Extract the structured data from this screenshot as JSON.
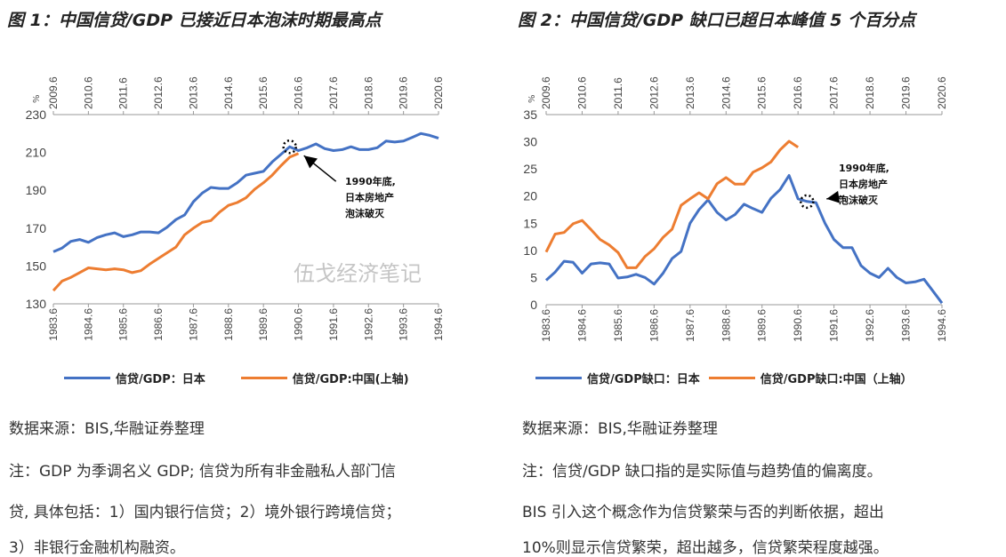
{
  "charts_titles": [
    "图 1：中国信贷/GDP 已接近日本泡沫时期最高点",
    "图 2：中国信贷/GDP 缺口已超日本峰值 5 个百分点"
  ],
  "chart_data": [
    {
      "type": "line",
      "title": "图 1：中国信贷/GDP 已接近日本泡沫时期最高点",
      "unit": "%",
      "ylim": [
        130,
        230
      ],
      "yticks": [
        "130",
        "150",
        "170",
        "190",
        "210",
        "230"
      ],
      "x_bottom_ticks": [
        "1983.6",
        "1984.6",
        "1985.6",
        "1986.6",
        "1987.6",
        "1988.6",
        "1989.6",
        "1990.6",
        "1991.6",
        "1992.6",
        "1993.6",
        "1994.6"
      ],
      "x_top_ticks": [
        "2009.6",
        "2010.6",
        "2011.6",
        "2012.6",
        "2013.6",
        "2014.6",
        "2015.6",
        "2016.6",
        "2017.6",
        "2018.6",
        "2019.6",
        "2020.6"
      ],
      "frequency": "quarterly",
      "series": [
        {
          "name": "信贷/GDP：日本",
          "color": "#4472C4",
          "axis": "bottom",
          "values": [
            157.5,
            159.5,
            163,
            164,
            162.5,
            165,
            166.5,
            167.5,
            165.5,
            166.5,
            168,
            168,
            167.5,
            170.5,
            174.5,
            177,
            184,
            188.5,
            191.5,
            191,
            191,
            194,
            198,
            199,
            200,
            205,
            209,
            213,
            211,
            212.5,
            214.5,
            212,
            211,
            211.5,
            213,
            211.5,
            211.5,
            212.5,
            216,
            215.5,
            216,
            218,
            220,
            219,
            217.5
          ]
        },
        {
          "name": "信贷/GDP:中国(上轴)",
          "color": "#ED7D31",
          "axis": "top",
          "values": [
            137,
            142,
            144,
            146.5,
            149,
            148.5,
            148,
            148.5,
            148,
            146.5,
            147.5,
            151,
            154,
            157,
            160,
            166.5,
            170,
            173,
            174,
            178.5,
            182,
            183.5,
            186,
            190.5,
            194,
            198,
            203,
            207.5,
            209.5
          ]
        }
      ],
      "annotation": {
        "lines": [
          "1990年底,",
          "日本房地产",
          "泡沫破灭"
        ],
        "at_index": 27
      },
      "legend": "bottom"
    },
    {
      "type": "line",
      "title": "图 2：中国信贷/GDP 缺口已超日本峰值 5 个百分点",
      "unit": "%",
      "ylim": [
        0,
        35
      ],
      "yticks": [
        "0",
        "5",
        "10",
        "15",
        "20",
        "25",
        "30",
        "35"
      ],
      "x_bottom_ticks": [
        "1983.6",
        "1984.6",
        "1985.6",
        "1986.6",
        "1987.6",
        "1988.6",
        "1989.6",
        "1990.6",
        "1991.6",
        "1992.6",
        "1993.6",
        "1994.6"
      ],
      "x_top_ticks": [
        "2009.6",
        "2010.6",
        "2011.6",
        "2012.6",
        "2013.6",
        "2014.6",
        "2015.6",
        "2016.6",
        "2017.6",
        "2018.6",
        "2019.6",
        "2020.6"
      ],
      "frequency": "quarterly",
      "series": [
        {
          "name": "信贷/GDP缺口：日本",
          "color": "#4472C4",
          "axis": "bottom",
          "values": [
            4.5,
            6,
            8,
            7.8,
            5.8,
            7.5,
            7.7,
            7.5,
            4.9,
            5.1,
            5.6,
            5,
            3.8,
            5.8,
            8.5,
            9.8,
            15,
            17.5,
            19.3,
            17,
            15.6,
            16.6,
            18.5,
            17.7,
            17,
            19.6,
            21.2,
            23.8,
            19.5,
            19,
            18.8,
            15,
            12,
            10.5,
            10.5,
            7.2,
            5.8,
            5,
            6.7,
            5,
            4,
            4.2,
            4.7,
            2.5,
            0.3
          ]
        },
        {
          "name": "信贷/GDP缺口:中国（上轴）",
          "color": "#ED7D31",
          "axis": "top",
          "values": [
            9.7,
            13,
            13.3,
            14.9,
            15.5,
            13.8,
            12,
            11,
            9.6,
            6.8,
            6.8,
            8.9,
            10.3,
            12.4,
            13.9,
            18.3,
            19.5,
            20.6,
            19.5,
            22.3,
            23.4,
            22.2,
            22.2,
            24.4,
            25.2,
            26.3,
            28.5,
            30.1,
            29
          ]
        }
      ],
      "annotation": {
        "lines": [
          "1990年底,",
          "日本房地产",
          "泡沫破灭"
        ],
        "at_index": 29
      },
      "legend": "bottom"
    }
  ],
  "left": {
    "source": "数据来源：BIS,华融证券整理",
    "note_lines": [
      "注：GDP 为季调名义 GDP; 信贷为所有非金融私人部门信",
      "贷, 具体包括：1）国内银行信贷；2）境外银行跨境信贷；",
      "3）非银行金融机构融资。"
    ]
  },
  "right": {
    "source": "数据来源：BIS,华融证券整理",
    "note_lines": [
      "注：信贷/GDP  缺口指的是实际值与趋势值的偏离度。",
      "BIS  引入这个概念作为信贷繁荣与否的判断依据，超出",
      "10%则显示信贷繁荣，超出越多，信贷繁荣程度越强。"
    ]
  },
  "watermark": "伍戈经济笔记"
}
